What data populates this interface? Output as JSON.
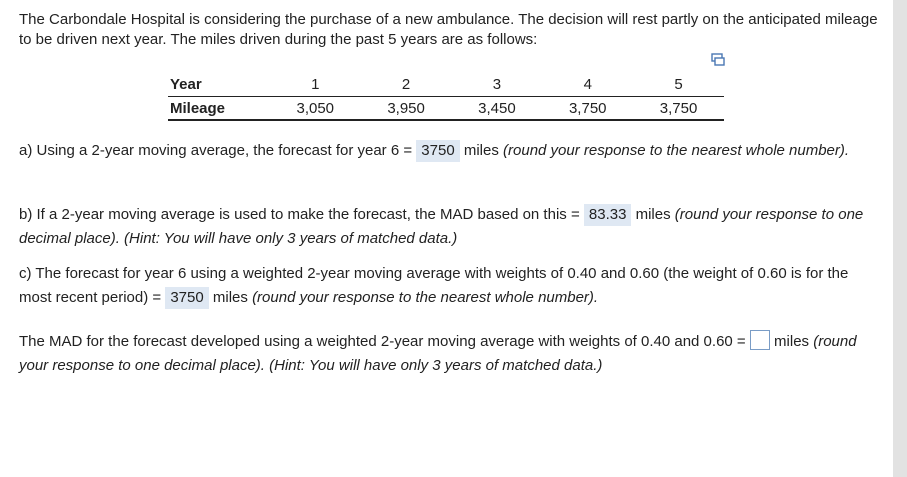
{
  "intro": "The Carbondale Hospital is considering the purchase of a new ambulance. The decision will rest partly on the anticipated mileage to be driven next year. The miles driven during the past 5 years are as follows:",
  "table": {
    "row_labels": [
      "Year",
      "Mileage"
    ],
    "years": [
      "1",
      "2",
      "3",
      "4",
      "5"
    ],
    "mileage": [
      "3,050",
      "3,950",
      "3,450",
      "3,750",
      "3,750"
    ]
  },
  "icons": {
    "copy": "copy-icon"
  },
  "questions": {
    "a": {
      "prefix": "a) Using a 2-year moving average, the forecast for year 6 =",
      "answer": "3750",
      "unit": "miles",
      "hint": "(round your response to the nearest whole number)."
    },
    "b": {
      "prefix": "b) If a 2-year moving average is used to make the forecast, the MAD based on this =",
      "answer": "83.33",
      "unit": "miles",
      "hint": "(round your response to one decimal place).  (Hint: You will have only 3 years of matched data.)"
    },
    "c": {
      "prefix": "c) The forecast for year 6 using a weighted 2-year moving average with weights of 0.40 and 0.60 (the weight of 0.60 is for the most recent period) =",
      "answer": "3750",
      "unit": "miles",
      "hint": "(round your response to the nearest whole number)."
    },
    "d": {
      "prefix": "The MAD for the forecast developed using a weighted 2-year moving average with weights of 0.40 and 0.60 =",
      "answer": "",
      "unit": "miles",
      "hint": "(round your response to one decimal place).  (Hint: You will have only 3 years of matched data.)"
    }
  }
}
